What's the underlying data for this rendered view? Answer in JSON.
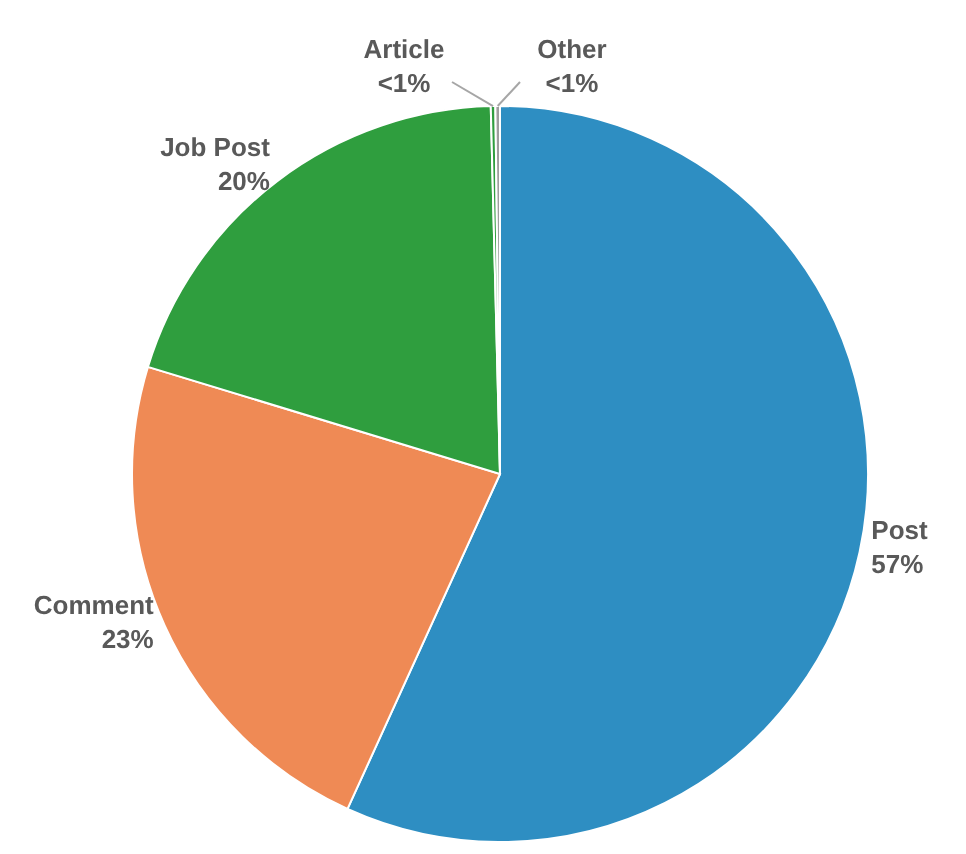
{
  "chart_data": {
    "type": "pie",
    "categories": [
      "Post",
      "Comment",
      "Job Post",
      "Article",
      "Other"
    ],
    "values": [
      56.8,
      22.9,
      19.9,
      0.2,
      0.2
    ],
    "value_labels": [
      "57%",
      "23%",
      "20%",
      "<1%",
      "<1%"
    ],
    "colors": [
      "#2e8ec2",
      "#ef8a55",
      "#2f9e3e",
      "#2f9e3e",
      "#9e9e9e"
    ]
  }
}
